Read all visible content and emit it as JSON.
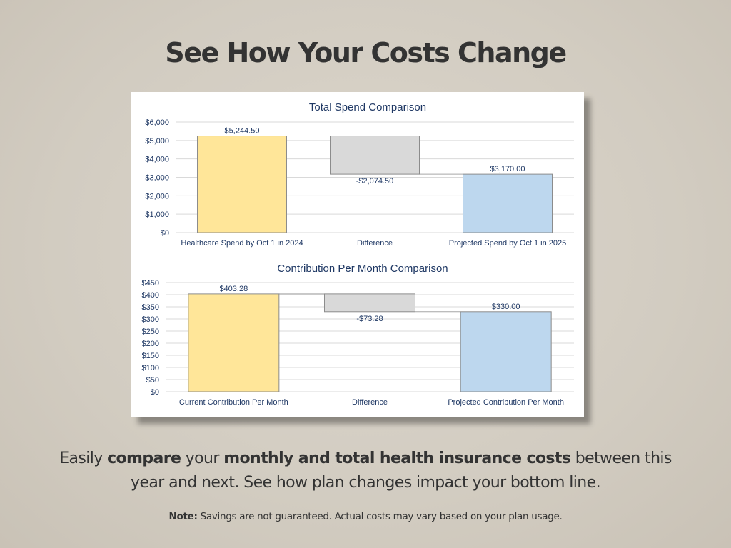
{
  "page": {
    "headline": "See How Your Costs Change",
    "caption": [
      {
        "text": "Easily ",
        "bold": false
      },
      {
        "text": "compare",
        "bold": true
      },
      {
        "text": " your ",
        "bold": false
      },
      {
        "text": "monthly and total health insurance costs",
        "bold": true
      },
      {
        "text": " between this year and next. See how plan changes impact your bottom line.",
        "bold": false
      }
    ],
    "note_label": "Note:",
    "note_text": " Savings are not guaranteed. Actual costs may vary based on your plan usage."
  },
  "colors": {
    "start_bar": "#ffe699",
    "difference_bar": "#d9d9d9",
    "end_bar": "#bdd7ee",
    "bar_stroke": "#8c8c8c",
    "gridline": "#d9d9d9",
    "text": "#1f3864"
  },
  "chart_data": [
    {
      "type": "bar",
      "subtype": "waterfall",
      "title": "Total Spend Comparison",
      "categories": [
        "Healthcare Spend by Oct 1 in 2024",
        "Difference",
        "Projected Spend by Oct 1 in 2025"
      ],
      "values": [
        5244.5,
        -2074.5,
        3170.0
      ],
      "data_labels": [
        "$5,244.50",
        "-$2,074.50",
        "$3,170.00"
      ],
      "ylim": [
        0,
        6000
      ],
      "yticks": [
        0,
        1000,
        2000,
        3000,
        4000,
        5000,
        6000
      ],
      "ytick_labels": [
        "$0",
        "$1,000",
        "$2,000",
        "$3,000",
        "$4,000",
        "$5,000",
        "$6,000"
      ],
      "grid": true,
      "xlabel": "",
      "ylabel": ""
    },
    {
      "type": "bar",
      "subtype": "waterfall",
      "title": "Contribution Per Month Comparison",
      "categories": [
        "Current Contribution Per Month",
        "Difference",
        "Projected Contribution Per Month"
      ],
      "values": [
        403.28,
        -73.28,
        330.0
      ],
      "data_labels": [
        "$403.28",
        "-$73.28",
        "$330.00"
      ],
      "ylim": [
        0,
        450
      ],
      "yticks": [
        0,
        50,
        100,
        150,
        200,
        250,
        300,
        350,
        400,
        450
      ],
      "ytick_labels": [
        "$0",
        "$50",
        "$100",
        "$150",
        "$200",
        "$250",
        "$300",
        "$350",
        "$400",
        "$450"
      ],
      "grid": true,
      "xlabel": "",
      "ylabel": ""
    }
  ]
}
